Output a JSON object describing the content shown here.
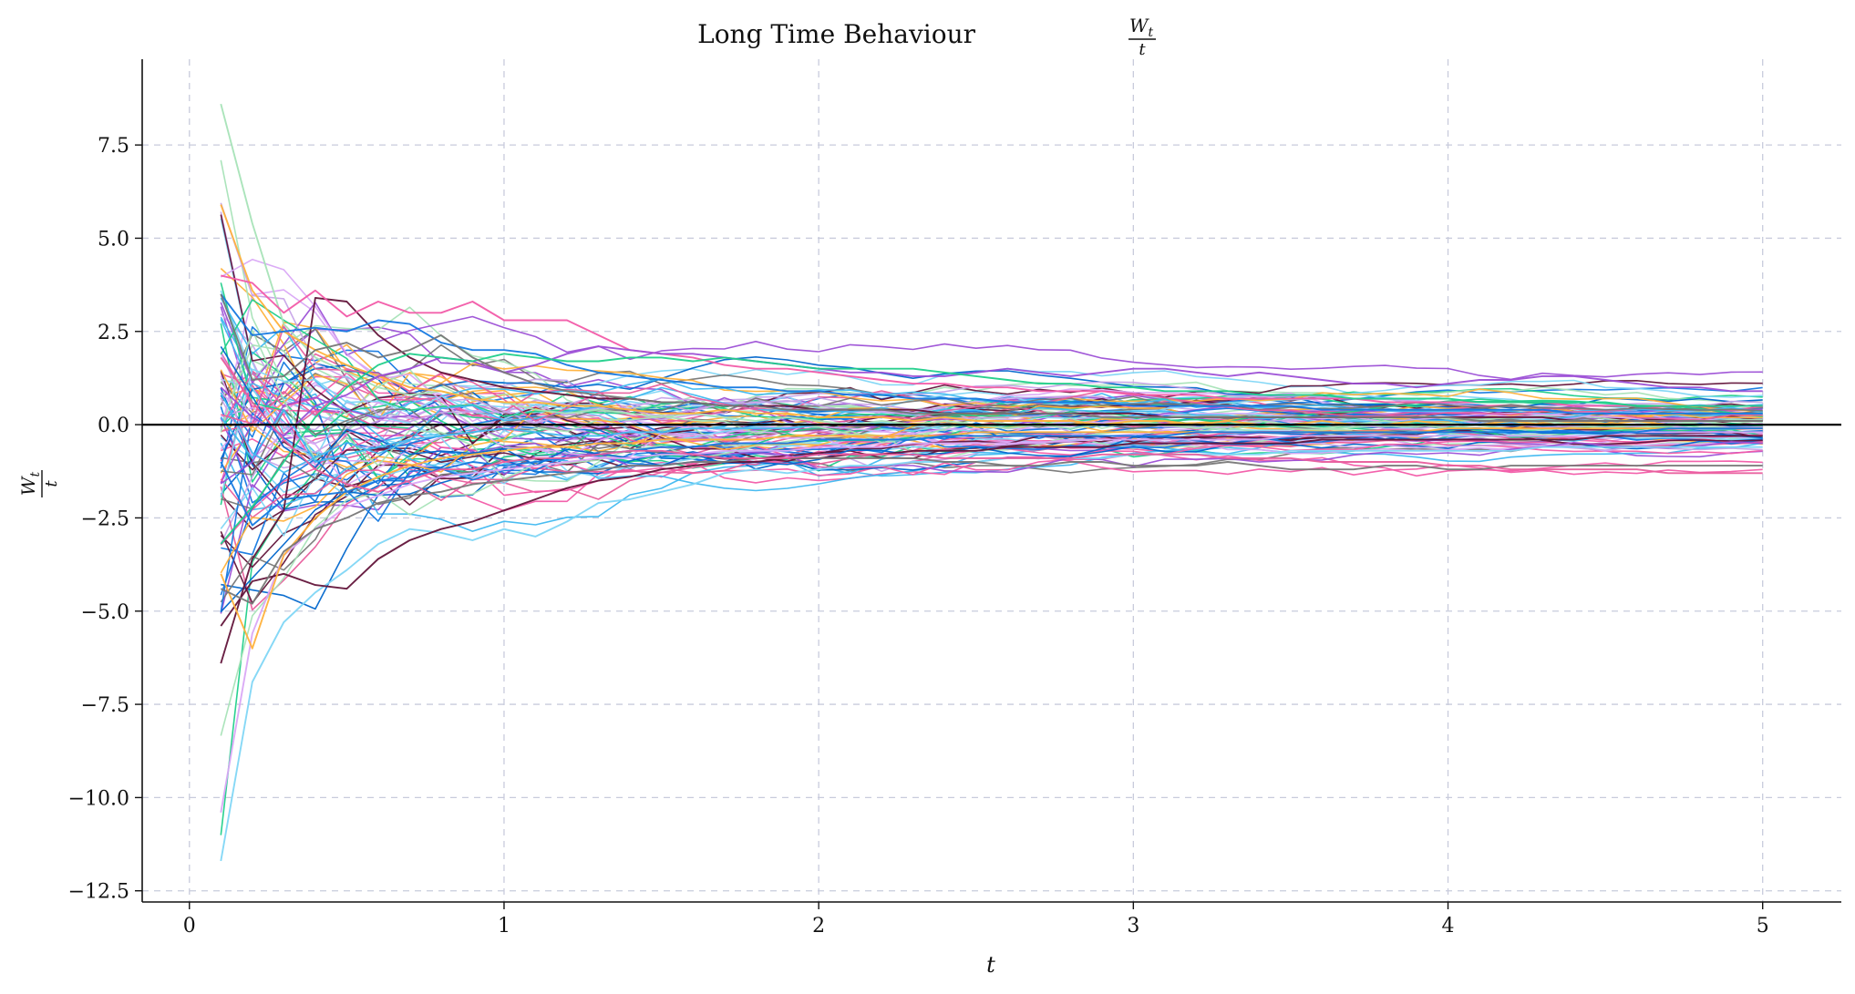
{
  "chart_data": {
    "type": "line",
    "title": "Long Time Behaviour",
    "title_fraction": {
      "numerator": "W",
      "numerator_subscript": "t",
      "denominator": "t"
    },
    "xlabel": "t",
    "ylabel_fraction": {
      "numerator": "W",
      "numerator_subscript": "t",
      "denominator": "t"
    },
    "xlim": [
      -0.15,
      5.25
    ],
    "ylim": [
      -12.8,
      9.8
    ],
    "xticks": [
      0,
      1,
      2,
      3,
      4,
      5
    ],
    "xtick_labels": [
      "0",
      "1",
      "2",
      "3",
      "4",
      "5"
    ],
    "yticks": [
      -12.5,
      -10.0,
      -7.5,
      -5.0,
      -2.5,
      0.0,
      2.5,
      5.0,
      7.5
    ],
    "ytick_labels": [
      "−12.5",
      "−10.0",
      "−7.5",
      "−5.0",
      "−2.5",
      "0.0",
      "2.5",
      "5.0",
      "7.5"
    ],
    "grid": true,
    "grid_style": "dashed",
    "reference_line": {
      "y": 0.0,
      "color": "#000000"
    },
    "num_paths": 100,
    "t_start": 0.1,
    "t_end": 5.0,
    "t_step": 0.1,
    "palette": [
      "#f25aa8",
      "#1478e0",
      "#62143a",
      "#7fd6f5",
      "#ffb13b",
      "#9c4fd6",
      "#777777",
      "#1fcf8a",
      "#d9a6f5",
      "#a6e3b7",
      "#0066cc",
      "#c7a4e8",
      "#3fb8f0",
      "#e85d9c"
    ],
    "series": [
      {
        "name": "",
        "color": "#a6e3b7",
        "values": [
          8.6,
          5.4,
          2.7,
          1.8,
          1.4,
          1.0,
          0.8,
          0.9,
          0.7,
          0.6,
          0.4,
          0.3,
          0.4,
          0.3,
          0.2,
          0.3,
          0.2,
          0.1,
          0.2,
          0.1,
          0.0,
          0.1,
          0.0,
          0.1,
          0.0,
          -0.1,
          0.0,
          -0.1,
          0.0,
          0.1,
          0.0,
          -0.1,
          0.0,
          0.1,
          0.0,
          -0.1,
          0.0,
          0.1,
          0.0,
          -0.1,
          0.0,
          0.0,
          0.1,
          0.0,
          -0.1,
          0.0,
          0.0,
          0.1,
          0.0,
          0.0
        ]
      },
      {
        "name": "",
        "color": "#ffb13b",
        "values": [
          5.9,
          3.6,
          2.5,
          2.0,
          1.6,
          1.3,
          1.0,
          0.9,
          0.7,
          0.6,
          0.6,
          0.5,
          0.5,
          0.4,
          0.3,
          0.3,
          0.4,
          0.3,
          0.3,
          0.2,
          0.2,
          0.2,
          0.1,
          0.2,
          0.1,
          0.1,
          0.1,
          0.1,
          0.0,
          0.1,
          0.1,
          0.0,
          0.1,
          0.0,
          0.0,
          0.1,
          0.0,
          0.0,
          0.1,
          0.0,
          0.0,
          0.1,
          0.0,
          0.0,
          0.0,
          0.1,
          0.0,
          0.0,
          0.0,
          0.0
        ]
      },
      {
        "name": "",
        "color": "#d9a6f5",
        "values": [
          -10.4,
          -5.6,
          -3.5,
          -2.8,
          -2.2,
          -1.9,
          -1.6,
          -1.4,
          -1.3,
          -1.2,
          -1.1,
          -1.0,
          -0.9,
          -0.9,
          -0.8,
          -0.8,
          -0.7,
          -0.7,
          -0.7,
          -0.6,
          -0.6,
          -0.6,
          -0.5,
          -0.5,
          -0.5,
          -0.5,
          -0.5,
          -0.4,
          -0.4,
          -0.4,
          -0.4,
          -0.4,
          -0.4,
          -0.4,
          -0.3,
          -0.3,
          -0.3,
          -0.3,
          -0.3,
          -0.3,
          -0.3,
          -0.3,
          -0.3,
          -0.3,
          -0.3,
          -0.2,
          -0.2,
          -0.2,
          -0.2,
          -0.2
        ]
      },
      {
        "name": "",
        "color": "#7fd6f5",
        "values": [
          -11.7,
          -6.9,
          -5.3,
          -4.5,
          -3.9,
          -3.2,
          -2.8,
          -2.9,
          -3.1,
          -2.8,
          -3.0,
          -2.6,
          -2.1,
          -2.0,
          -1.8,
          -1.6,
          -1.3,
          -1.2,
          -1.3,
          -1.2,
          -1.1,
          -1.1,
          -1.0,
          -1.0,
          -1.0,
          -0.9,
          -0.9,
          -0.9,
          -0.9,
          -0.8,
          -0.8,
          -0.8,
          -0.8,
          -0.8,
          -0.7,
          -0.7,
          -0.7,
          -0.7,
          -0.7,
          -0.7,
          -0.7,
          -0.7,
          -0.6,
          -0.6,
          -0.6,
          -0.6,
          -0.6,
          -0.6,
          -0.6,
          -0.6
        ]
      },
      {
        "name": "",
        "color": "#62143a",
        "values": [
          -6.4,
          -3.6,
          -2.3,
          3.4,
          3.3,
          2.4,
          1.8,
          1.4,
          1.2,
          1.0,
          0.9,
          0.8,
          0.7,
          0.7,
          0.6,
          0.6,
          0.5,
          0.5,
          0.5,
          0.4,
          0.4,
          0.4,
          0.4,
          0.3,
          0.3,
          0.3,
          0.3,
          0.3,
          0.3,
          0.3,
          0.2,
          0.2,
          0.2,
          0.2,
          0.2,
          0.2,
          0.2,
          0.2,
          0.2,
          0.2,
          0.2,
          0.2,
          0.2,
          0.1,
          0.1,
          0.1,
          0.1,
          0.1,
          0.1,
          0.1
        ]
      },
      {
        "name": "",
        "color": "#f25aa8",
        "values": [
          4.0,
          3.8,
          3.0,
          3.6,
          2.9,
          3.3,
          3.0,
          3.0,
          3.3,
          2.8,
          2.8,
          2.8,
          2.4,
          2.0,
          1.9,
          1.8,
          1.6,
          1.5,
          1.5,
          1.4,
          1.3,
          1.2,
          1.1,
          1.1,
          1.0,
          1.0,
          0.9,
          0.9,
          0.9,
          0.8,
          0.8,
          0.8,
          0.7,
          0.7,
          0.7,
          0.7,
          0.7,
          0.6,
          0.6,
          0.6,
          0.6,
          0.6,
          0.6,
          0.5,
          0.5,
          0.5,
          0.5,
          0.5,
          0.5,
          0.5
        ]
      },
      {
        "name": "",
        "color": "#62143a",
        "values": [
          -5.4,
          -4.2,
          -4.0,
          -4.3,
          -4.4,
          -3.6,
          -3.1,
          -2.8,
          -2.6,
          -2.3,
          -2.0,
          -1.7,
          -1.5,
          -1.4,
          -1.2,
          -1.1,
          -1.0,
          -1.0,
          -0.9,
          -0.9,
          -0.8,
          -0.8,
          -0.7,
          -0.7,
          -0.7,
          -0.6,
          -0.6,
          -0.6,
          -0.6,
          -0.5,
          -0.5,
          -0.5,
          -0.5,
          -0.5,
          -0.5,
          -0.4,
          -0.4,
          -0.4,
          -0.4,
          -0.4,
          -0.4,
          -0.4,
          -0.4,
          -0.4,
          -0.3,
          -0.3,
          -0.3,
          -0.3,
          -0.3,
          -0.3
        ]
      },
      {
        "name": "",
        "color": "#ffb13b",
        "values": [
          -4.0,
          -6.0,
          -3.5,
          -2.5,
          -1.8,
          -1.4,
          -1.1,
          -0.9,
          -0.8,
          -0.7,
          -0.6,
          -0.6,
          -0.5,
          -0.5,
          -0.4,
          -0.4,
          -0.4,
          -0.4,
          -0.3,
          -0.3,
          -0.3,
          -0.3,
          -0.3,
          -0.3,
          -0.2,
          -0.2,
          -0.2,
          -0.2,
          -0.2,
          -0.2,
          -0.2,
          -0.2,
          -0.2,
          -0.2,
          -0.2,
          -0.2,
          -0.2,
          -0.2,
          -0.2,
          -0.1,
          -0.1,
          -0.1,
          -0.1,
          -0.1,
          -0.1,
          -0.1,
          -0.1,
          -0.1,
          -0.1,
          -0.1
        ]
      },
      {
        "name": "",
        "color": "#1478e0",
        "values": [
          3.5,
          2.4,
          2.5,
          2.6,
          2.5,
          2.8,
          2.7,
          2.2,
          2.0,
          2.0,
          1.9,
          1.6,
          1.4,
          1.3,
          1.2,
          1.1,
          1.0,
          1.0,
          0.9,
          0.9,
          0.8,
          0.8,
          0.7,
          0.7,
          0.7,
          0.6,
          0.6,
          0.6,
          0.6,
          0.5,
          0.5,
          0.5,
          0.5,
          0.5,
          0.5,
          0.4,
          0.4,
          0.4,
          0.4,
          0.4,
          0.4,
          0.4,
          0.4,
          0.3,
          0.3,
          0.3,
          0.3,
          0.3,
          0.3,
          0.3
        ]
      },
      {
        "name": "",
        "color": "#9c4fd6",
        "values": [
          1.0,
          0.2,
          -0.3,
          0.5,
          0.8,
          1.3,
          1.5,
          1.8,
          1.7,
          1.4,
          1.6,
          1.9,
          2.1,
          2.0,
          1.9,
          1.9,
          1.8,
          1.7,
          1.6,
          1.5,
          1.4,
          1.4,
          1.3,
          1.3,
          1.4,
          1.5,
          1.4,
          1.3,
          1.4,
          1.5,
          1.5,
          1.4,
          1.3,
          1.4,
          1.3,
          1.2,
          1.1,
          1.1,
          1.0,
          1.1,
          1.2,
          1.2,
          1.3,
          1.3,
          1.2,
          1.1,
          1.0,
          1.0,
          0.9,
          0.9
        ]
      },
      {
        "name": "",
        "color": "#777777",
        "values": [
          -4.4,
          -4.8,
          -3.4,
          -2.8,
          -2.5,
          -2.1,
          -1.9,
          -1.8,
          -1.6,
          -1.5,
          -1.4,
          -1.3,
          -1.2,
          -1.1,
          -1.1,
          -1.0,
          -1.0,
          -0.9,
          -0.9,
          -0.9,
          -0.9,
          -0.9,
          -0.9,
          -1.0,
          -1.0,
          -1.1,
          -1.1,
          -1.0,
          -1.0,
          -1.1,
          -1.1,
          -1.1,
          -1.0,
          -1.1,
          -1.2,
          -1.2,
          -1.2,
          -1.1,
          -1.1,
          -1.2,
          -1.2,
          -1.1,
          -1.1,
          -1.1,
          -1.1,
          -1.1,
          -1.1,
          -1.1,
          -1.1,
          -1.1
        ]
      },
      {
        "name": "",
        "color": "#1fcf8a",
        "values": [
          -3.2,
          -2.2,
          -1.0,
          0.2,
          1.0,
          1.6,
          1.9,
          1.8,
          1.7,
          1.9,
          1.8,
          1.7,
          1.7,
          1.8,
          1.8,
          1.7,
          1.8,
          1.7,
          1.6,
          1.5,
          1.5,
          1.5,
          1.5,
          1.4,
          1.3,
          1.2,
          1.1,
          1.1,
          1.0,
          1.0,
          0.9,
          0.9,
          0.9,
          0.8,
          0.8,
          0.8,
          0.7,
          0.7,
          0.7,
          0.7,
          0.6,
          0.6,
          0.6,
          0.6,
          0.6,
          0.5,
          0.5,
          0.5,
          0.5,
          0.5
        ]
      },
      {
        "name": "",
        "color": "#1478e0",
        "values": [
          -1.0,
          -2.7,
          -2.0,
          -1.9,
          -1.8,
          -1.5,
          -1.4,
          -1.2,
          -1.0,
          -1.1,
          -1.0,
          -0.9,
          -0.8,
          -0.7,
          -0.6,
          -0.6,
          -0.5,
          -0.5,
          -0.5,
          -0.4,
          -0.4,
          -0.4,
          -0.4,
          -0.3,
          -0.3,
          -0.3,
          -0.3,
          -0.3,
          -0.3,
          -0.3,
          -0.3,
          -0.2,
          -0.2,
          -0.2,
          -0.2,
          -0.2,
          -0.2,
          -0.2,
          -0.2,
          -0.2,
          -0.2,
          -0.2,
          -0.2,
          -0.2,
          -0.2,
          -0.2,
          -0.1,
          -0.1,
          -0.1,
          -0.1
        ]
      },
      {
        "name": "",
        "color": "#777777",
        "values": [
          3.5,
          1.2,
          1.3,
          2.0,
          2.2,
          1.8,
          2.0,
          2.4,
          1.8,
          1.4,
          1.1,
          0.9,
          0.8,
          0.7,
          0.6,
          0.6,
          0.5,
          0.5,
          0.4,
          0.4,
          0.4,
          0.4,
          0.3,
          0.3,
          0.3,
          0.3,
          0.3,
          0.3,
          0.2,
          0.2,
          0.2,
          0.2,
          0.2,
          0.2,
          0.2,
          0.2,
          0.2,
          0.2,
          0.2,
          0.2,
          0.1,
          0.1,
          0.1,
          0.1,
          0.1,
          0.1,
          0.1,
          0.1,
          0.1,
          0.1
        ]
      },
      {
        "name": "",
        "color": "#3fb8f0",
        "values": [
          0.2,
          -0.9,
          0.4,
          -1.0,
          -0.8,
          -0.6,
          -0.4,
          -0.3,
          -0.2,
          -0.1,
          -0.2,
          -0.3,
          -0.3,
          -0.2,
          -0.2,
          -0.1,
          -0.1,
          -0.1,
          -0.1,
          0.0,
          0.0,
          0.0,
          0.0,
          0.0,
          0.0,
          0.0,
          0.0,
          0.0,
          0.0,
          0.0,
          0.0,
          0.0,
          0.0,
          0.0,
          0.0,
          0.0,
          0.0,
          0.0,
          0.0,
          0.0,
          0.0,
          0.0,
          0.0,
          0.0,
          0.0,
          0.0,
          0.0,
          0.0,
          0.0,
          0.0
        ]
      },
      {
        "name": "",
        "color": "#e85d9c",
        "values": [
          1.8,
          0.6,
          -0.4,
          -1.2,
          -1.6,
          -1.8,
          -1.5,
          -1.2,
          -1.2,
          -1.0,
          -0.9,
          -0.9,
          -0.8,
          -0.7,
          -0.7,
          -0.8,
          -0.9,
          -0.9,
          -0.9,
          -0.8,
          -0.8,
          -0.8,
          -0.8,
          -0.9,
          -0.9,
          -0.9,
          -0.9,
          -0.9,
          -0.8,
          -0.8,
          -0.8,
          -0.8,
          -0.9,
          -0.9,
          -0.9,
          -1.0,
          -1.0,
          -1.0,
          -1.0,
          -1.1,
          -1.1,
          -1.2,
          -1.2,
          -1.2,
          -1.2,
          -1.2,
          -1.3,
          -1.3,
          -1.3,
          -1.3
        ]
      }
    ]
  }
}
